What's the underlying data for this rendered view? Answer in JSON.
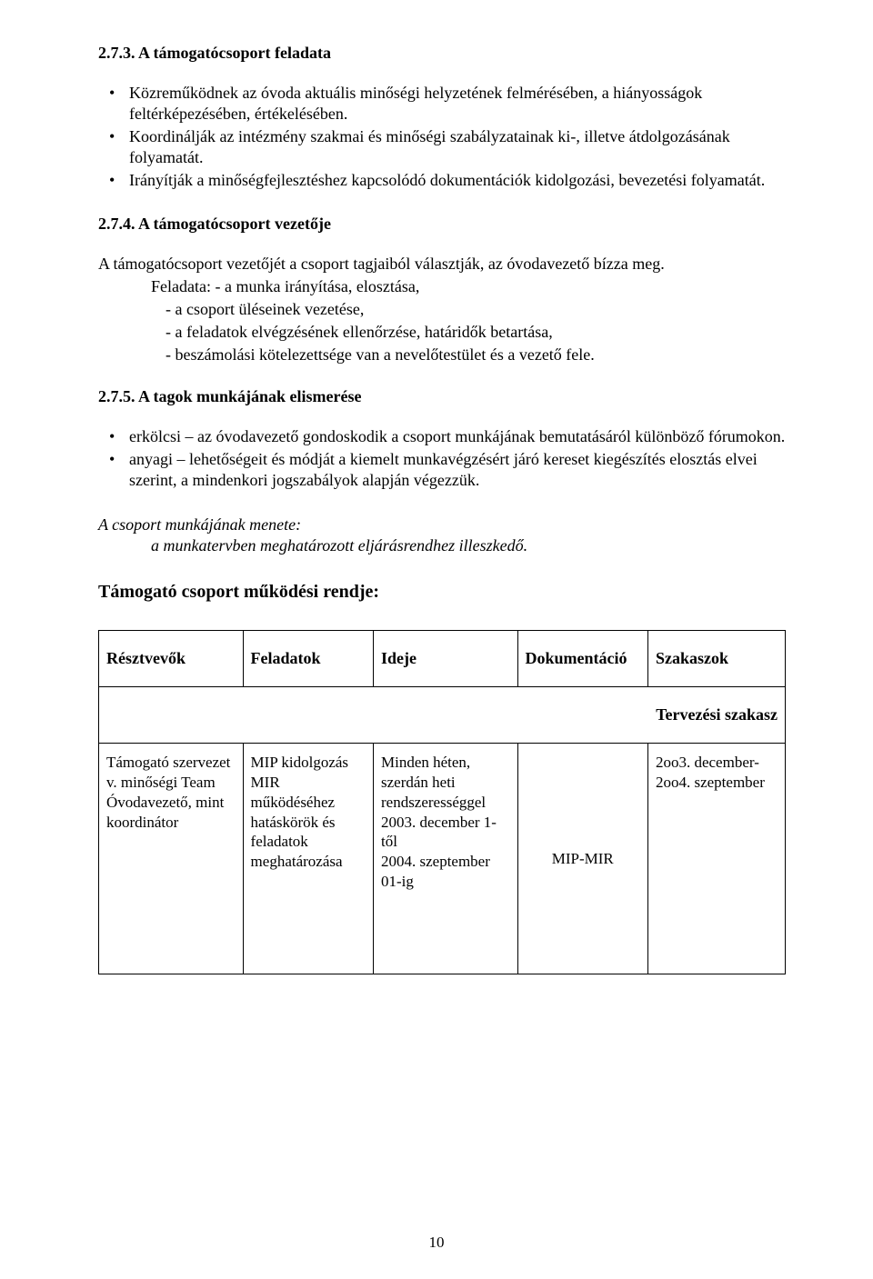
{
  "sections": {
    "s273": {
      "heading": "2.7.3. A támogatócsoport feladata",
      "bullets": [
        "Közreműködnek az óvoda aktuális minőségi helyzetének felmérésében, a hiányosságok feltérképezésében, értékelésében.",
        "Koordinálják az intézmény szakmai és minőségi szabályzatainak ki-, illetve átdolgozásának folyamatát.",
        "Irányítják a minőségfejlesztéshez kapcsolódó dokumentációk kidolgozási, bevezetési folyamatát."
      ]
    },
    "s274": {
      "heading": "2.7.4. A támogatócsoport vezetője",
      "intro": "A támogatócsoport vezetőjét a csoport tagjaiból választják, az óvodavezető bízza meg.",
      "feladata_label_line": "Feladata: - a munka irányítása, elosztása,",
      "sub": [
        "- a csoport üléseinek vezetése,",
        "- a feladatok elvégzésének ellenőrzése, határidők betartása,",
        "- beszámolási kötelezettsége van a nevelőtestület és a vezető fele."
      ]
    },
    "s275": {
      "heading": "2.7.5.  A tagok munkájának elismerése",
      "bullets": [
        "erkölcsi – az óvodavezető gondoskodik a csoport munkájának bemutatásáról különböző fórumokon.",
        "anyagi – lehetőségeit és módját a kiemelt munkavégzésért járó kereset kiegészítés elosztás elvei szerint, a mindenkori jogszabályok alapján végezzük."
      ]
    },
    "menete": {
      "line1": "A csoport munkájának menete:",
      "line2": "a munkatervben meghatározott eljárásrendhez illeszkedő."
    },
    "rendje_title": "Támogató csoport működési rendje:"
  },
  "table": {
    "headers": [
      "Résztvevők",
      "Feladatok",
      "Ideje",
      "Dokumentáció",
      "Szakaszok"
    ],
    "phase_label": "Tervezési szakasz",
    "row": {
      "c1": "Támogató szervezet\nv. minőségi Team\nÓvodavezető, mint koordinátor",
      "c2": "MIP kidolgozás\nMIR működéséhez hatáskörök és feladatok meghatározása",
      "c3": "Minden héten, szerdán heti rendszerességgel 2003. december 1-től\n2004. szeptember 01-ig",
      "c4": "MIP-MIR",
      "c5": "2oo3. december-\n2oo4. szeptember"
    },
    "col_widths": [
      "21%",
      "19%",
      "21%",
      "19%",
      "20%"
    ]
  },
  "page_number": "10"
}
